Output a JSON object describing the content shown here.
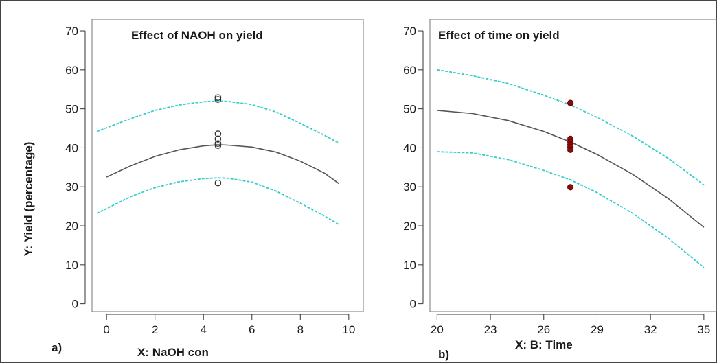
{
  "figure": {
    "ylabel": "Y: Yield (percentage)"
  },
  "chart_data": [
    {
      "type": "line",
      "panel_label": "a)",
      "title": "Effect of NAOH on yield",
      "xlabel": "X: NaOH con",
      "xlim": [
        -0.6,
        10.6
      ],
      "ylim": [
        -2,
        73
      ],
      "x_ticks": [
        0,
        2,
        4,
        6,
        8,
        10
      ],
      "y_ticks": [
        0,
        10,
        20,
        30,
        40,
        50,
        60,
        70
      ],
      "series": [
        {
          "role": "fit",
          "x": [
            0,
            1,
            2,
            3,
            4,
            4.6,
            5,
            6,
            7,
            8,
            9,
            9.6
          ],
          "y": [
            32.5,
            35.4,
            37.8,
            39.5,
            40.5,
            40.8,
            40.7,
            40.2,
            38.9,
            36.6,
            33.5,
            30.8
          ],
          "color": "#555555"
        },
        {
          "role": "upper",
          "x": [
            -0.4,
            1,
            2,
            3,
            4,
            4.6,
            5,
            6,
            7,
            8,
            9,
            9.6
          ],
          "y": [
            44.2,
            47.5,
            49.6,
            51,
            51.8,
            52,
            51.9,
            51.1,
            49.2,
            46.3,
            43.2,
            41.2
          ],
          "color": "#33cccc"
        },
        {
          "role": "lower",
          "x": [
            -0.4,
            1,
            2,
            3,
            4,
            4.6,
            5,
            6,
            7,
            8,
            9,
            9.6
          ],
          "y": [
            23.2,
            27.5,
            29.8,
            31.3,
            32.1,
            32.3,
            32.2,
            31.2,
            28.9,
            25.8,
            22.5,
            20.3
          ],
          "color": "#33cccc"
        }
      ],
      "points": {
        "x": [
          4.6,
          4.6,
          4.6,
          4.6,
          4.6,
          4.6,
          4.6
        ],
        "y": [
          52.9,
          52.4,
          43.6,
          42.3,
          41.1,
          40.6,
          31
        ],
        "style": "open",
        "color": "#333333"
      }
    },
    {
      "type": "line",
      "panel_label": "b)",
      "title": "Effect of time on yield",
      "xlabel": "X: B: Time",
      "xlim": [
        19.6,
        35.7
      ],
      "ylim": [
        -2,
        73
      ],
      "x_ticks": [
        20,
        23,
        26,
        29,
        32,
        35
      ],
      "y_ticks": [
        0,
        10,
        20,
        30,
        40,
        50,
        60,
        70
      ],
      "series": [
        {
          "role": "fit",
          "x": [
            20,
            22,
            24,
            26,
            27.5,
            29,
            31,
            33,
            35
          ],
          "y": [
            49.6,
            48.8,
            47,
            44.2,
            41.5,
            38.3,
            33.2,
            27,
            19.6
          ],
          "color": "#555555"
        },
        {
          "role": "upper",
          "x": [
            20,
            22,
            24,
            26,
            27.5,
            29,
            31,
            33,
            35
          ],
          "y": [
            60,
            58.5,
            56.5,
            53.5,
            51,
            47.8,
            43,
            37.3,
            30.5
          ],
          "color": "#33cccc"
        },
        {
          "role": "lower",
          "x": [
            20,
            22,
            24,
            26,
            27.5,
            29,
            31,
            33,
            35
          ],
          "y": [
            39,
            38.7,
            37,
            34.2,
            31.8,
            28.5,
            23.2,
            16.8,
            9.3
          ],
          "color": "#33cccc"
        }
      ],
      "points": {
        "x": [
          27.5,
          27.5,
          27.5,
          27.5,
          27.5,
          27.5,
          27.5
        ],
        "y": [
          51.5,
          42.3,
          41.5,
          40.8,
          40.2,
          39.5,
          29.9
        ],
        "style": "filled",
        "color": "#8b0a0a"
      }
    }
  ]
}
